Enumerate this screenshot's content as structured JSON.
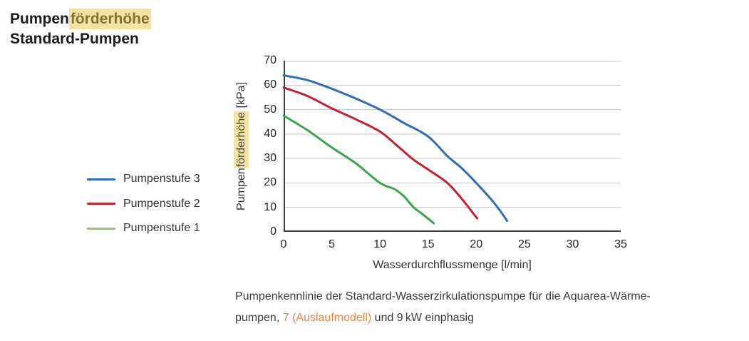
{
  "title": {
    "part1": "Pumpen",
    "highlight": "förderhöhe",
    "line2": "Standard-Pumpen"
  },
  "chart_data": {
    "type": "line",
    "xlabel": "Wasserdurchflussmenge [l/min]",
    "ylabel": "Pumpenförderhöhe [kPa]",
    "ylabel_pre": "Pumpen",
    "ylabel_highlight": "förderhöhe",
    "ylabel_post": " [kPa]",
    "xlim": [
      0,
      35
    ],
    "ylim": [
      0,
      70
    ],
    "x_ticks": [
      0,
      5,
      10,
      15,
      20,
      25,
      30,
      35
    ],
    "y_ticks": [
      0,
      10,
      20,
      30,
      40,
      50,
      60,
      70
    ],
    "grid": "horizontal",
    "grid_color": "#cbcbcb",
    "axis_color": "#3f3f3f",
    "legend_position": "left-outside",
    "series": [
      {
        "name": "Pumpenstufe 3",
        "color": "#2e6db7",
        "legend_color": "#2e6db7",
        "points": [
          [
            0,
            64
          ],
          [
            2.5,
            62
          ],
          [
            5,
            58.5
          ],
          [
            7.5,
            54.5
          ],
          [
            10,
            50
          ],
          [
            12.5,
            44.5
          ],
          [
            15,
            39
          ],
          [
            17,
            31
          ],
          [
            18.5,
            26
          ],
          [
            20,
            20
          ],
          [
            21.5,
            13.5
          ],
          [
            22.5,
            8.5
          ],
          [
            23.2,
            4.5
          ]
        ]
      },
      {
        "name": "Pumpenstufe 2",
        "color": "#c0242e",
        "legend_color": "#c0242e",
        "points": [
          [
            0,
            59
          ],
          [
            2.5,
            55.5
          ],
          [
            5,
            50.5
          ],
          [
            7.5,
            46
          ],
          [
            10,
            41
          ],
          [
            12,
            34.5
          ],
          [
            13.5,
            29.5
          ],
          [
            15,
            25.5
          ],
          [
            17,
            20
          ],
          [
            18.5,
            13.5
          ],
          [
            19.5,
            8.5
          ],
          [
            20.1,
            5.5
          ]
        ]
      },
      {
        "name": "Pumpenstufe 1",
        "color": "#3fa24c",
        "legend_color": "#9cc464",
        "points": [
          [
            0,
            47.5
          ],
          [
            2.5,
            41.5
          ],
          [
            5,
            34.5
          ],
          [
            7.5,
            28
          ],
          [
            10,
            20
          ],
          [
            11.5,
            17.5
          ],
          [
            12.5,
            14.5
          ],
          [
            13.5,
            10
          ],
          [
            14.5,
            7
          ],
          [
            15.6,
            3.5
          ]
        ]
      }
    ]
  },
  "caption": {
    "line1": "Pumpenkennlinie der Standard-Wasserzirkulationspumpe für die Aquarea-Wärme-",
    "line2_pre": "pumpen, ",
    "line2_orange": "7 (Auslaufmodell)",
    "line2_post": " und 9 kW einphasig",
    "orange_color": "#ee8142"
  },
  "colors": {
    "highlight_background": "#f2e3a3",
    "title_highlight_text": "#837336",
    "axis_highlight_text": "#514d3f"
  }
}
